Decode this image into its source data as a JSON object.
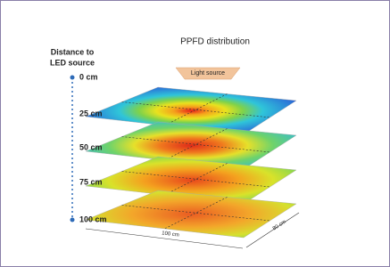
{
  "title": "PPFD distribution",
  "axis": {
    "label_lines": [
      "Distance to",
      "LED source"
    ]
  },
  "light_source": "Light source",
  "levels": [
    "0 cm",
    "25 cm",
    "50 cm",
    "75 cm",
    "100 cm"
  ],
  "dimensions": {
    "width": "100 cm",
    "depth": "80 cm"
  }
}
